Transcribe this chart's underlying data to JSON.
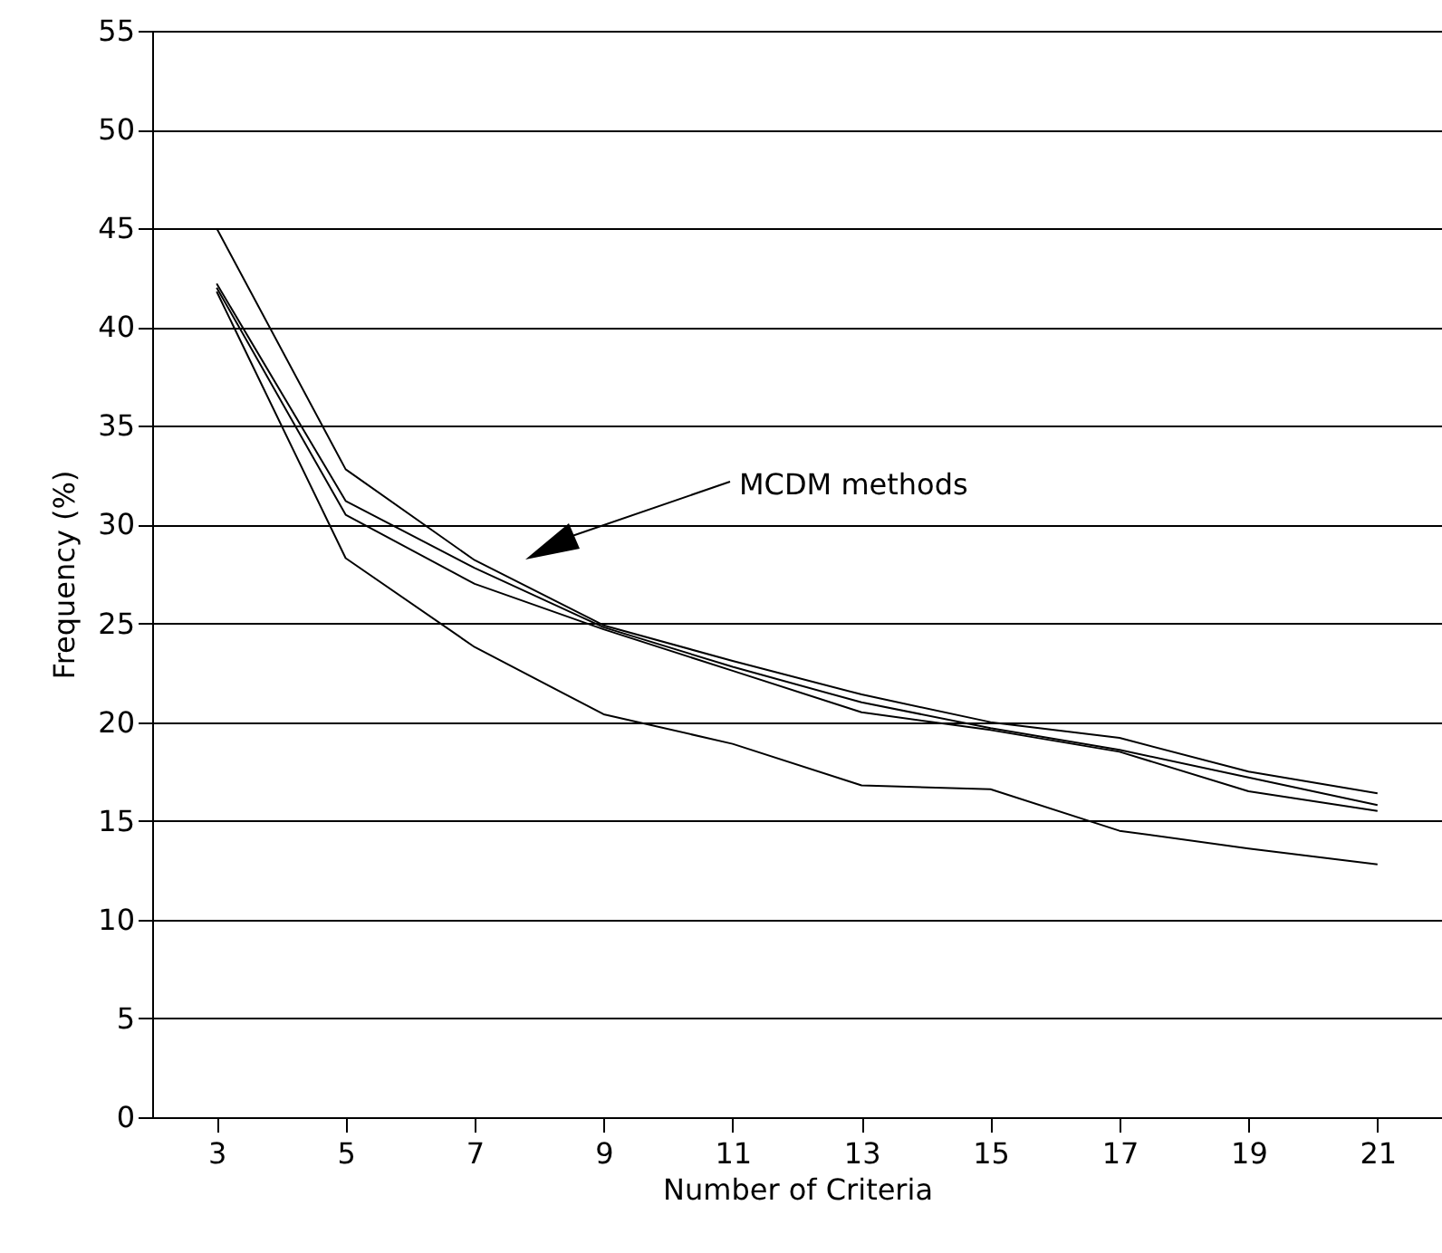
{
  "chart_data": {
    "type": "line",
    "xlabel": "Number of Criteria",
    "ylabel": "Frequency  (%)",
    "categories": [
      "3",
      "5",
      "7",
      "9",
      "11",
      "13",
      "15",
      "17",
      "19",
      "21"
    ],
    "series": [
      {
        "color": "#000000",
        "values": [
          45,
          32.8,
          28.2,
          24.9,
          23.1,
          21.4,
          20.0,
          19.2,
          17.5,
          16.4
        ]
      },
      {
        "color": "#000000",
        "values": [
          42.2,
          31.2,
          27.8,
          24.8,
          22.8,
          21.0,
          19.7,
          18.6,
          17.2,
          15.8
        ]
      },
      {
        "color": "#000000",
        "values": [
          42.0,
          30.5,
          27.0,
          24.7,
          22.6,
          20.5,
          19.6,
          18.5,
          16.5,
          15.5
        ]
      },
      {
        "color": "#000000",
        "values": [
          41.8,
          28.3,
          23.8,
          20.4,
          18.9,
          16.8,
          16.6,
          14.5,
          13.6,
          12.8
        ]
      }
    ],
    "ylim": [
      0,
      55
    ],
    "yticks": [
      0,
      5,
      10,
      15,
      20,
      25,
      30,
      35,
      40,
      45,
      50,
      55
    ],
    "grid": "y",
    "marker": "none",
    "line_style": "solid",
    "annotations": [
      "MCDM methods"
    ]
  }
}
